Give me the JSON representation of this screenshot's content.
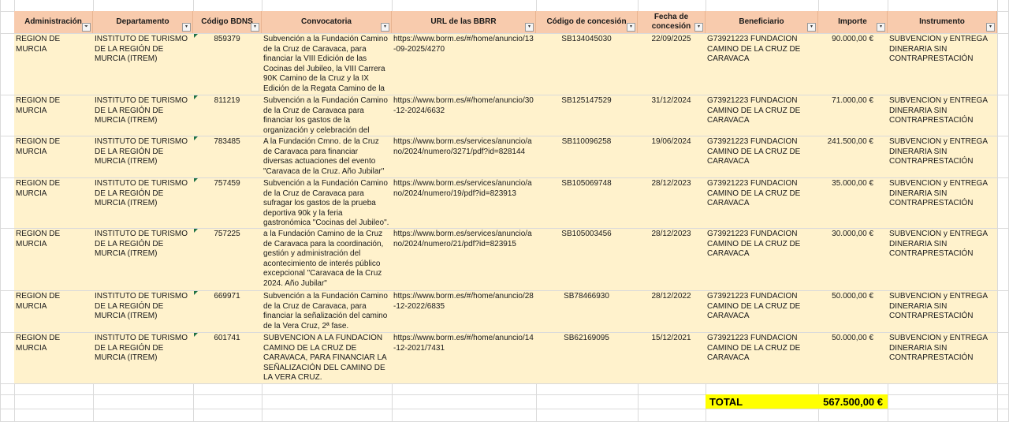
{
  "headers": [
    {
      "label": "Administración",
      "filter": "sorted"
    },
    {
      "label": "Departamento",
      "filter": "dropdown"
    },
    {
      "label": "Código BDNS",
      "filter": "dropdown"
    },
    {
      "label": "Convocatoria",
      "filter": "dropdown"
    },
    {
      "label": "URL de las BBRR",
      "filter": "dropdown"
    },
    {
      "label": "Código de concesión",
      "filter": "dropdown"
    },
    {
      "label": "Fecha de concesión",
      "filter": "dropdown"
    },
    {
      "label": "Beneficiario",
      "filter": "dropdown"
    },
    {
      "label": "Importe",
      "filter": "dropdown"
    },
    {
      "label": "Instrumento",
      "filter": "dropdown"
    }
  ],
  "rows": [
    {
      "administracion": "REGIÓN DE MURCIA",
      "departamento": "INSTITUTO DE TURISMO DE LA REGIÓN DE MURCIA (ITREM)",
      "bdns": "859379",
      "convocatoria": "Subvención a la Fundación Camino de la Cruz de Caravaca, para financiar la VIII Edición de las Cocinas del Jubileo, la VIII Carrera 90K Camino de la Cruz y la IX Edición de la Regata Camino de la Cruz Trofeo Punta Este",
      "url": "https://www.borm.es/#/home/anuncio/13-09-2025/4270",
      "codigo": "SB134045030",
      "fecha": "22/09/2025",
      "beneficiario": "G73921223 FUNDACION CAMINO DE LA CRUZ DE CARAVACA",
      "importe": "90.000,00 €",
      "instrumento": "SUBVENCIÓN y ENTREGA DINERARIA SIN CONTRAPRESTACIÓN"
    },
    {
      "administracion": "REGIÓN DE MURCIA",
      "departamento": "INSTITUTO DE TURISMO DE LA REGIÓN DE MURCIA (ITREM)",
      "bdns": "811219",
      "convocatoria": "Subvención a la Fundación Camino de la Cruz de Caravaca para financiar los gastos de la organización y celebración del festival \"Medievalada\"",
      "url": "https://www.borm.es/#/home/anuncio/30-12-2024/6632",
      "codigo": "SB125147529",
      "fecha": "31/12/2024",
      "beneficiario": "G73921223 FUNDACION CAMINO DE LA CRUZ DE CARAVACA",
      "importe": "71.000,00 €",
      "instrumento": "SUBVENCIÓN y ENTREGA DINERARIA SIN CONTRAPRESTACIÓN"
    },
    {
      "administracion": "REGIÓN DE MURCIA",
      "departamento": "INSTITUTO DE TURISMO DE LA REGIÓN DE MURCIA (ITREM)",
      "bdns": "783485",
      "convocatoria": "A la Fundación Cmno. de la Cruz de Caravaca para financiar diversas actuaciones del evento \"Caravaca de la Cruz. Año Jubilar\"",
      "url": "https://www.borm.es/services/anuncio/ano/2024/numero/3271/pdf?id=828144",
      "codigo": "SB110096258",
      "fecha": "19/06/2024",
      "beneficiario": "G73921223 FUNDACION CAMINO DE LA CRUZ DE CARAVACA",
      "importe": "241.500,00 €",
      "instrumento": "SUBVENCIÓN y ENTREGA DINERARIA SIN CONTRAPRESTACIÓN"
    },
    {
      "administracion": "REGIÓN DE MURCIA",
      "departamento": "INSTITUTO DE TURISMO DE LA REGIÓN DE MURCIA (ITREM)",
      "bdns": "757459",
      "convocatoria": "Subvención a la Fundación Camino de la Cruz de Caravaca para sufragar los gastos de la prueba deportiva 90k y la feria gastronómica \"Cocinas del Jubileo\".",
      "url": "https://www.borm.es/services/anuncio/ano/2024/numero/19/pdf?id=823913",
      "codigo": "SB105069748",
      "fecha": "28/12/2023",
      "beneficiario": "G73921223 FUNDACION CAMINO DE LA CRUZ DE CARAVACA",
      "importe": "35.000,00 €",
      "instrumento": "SUBVENCIÓN y ENTREGA DINERARIA SIN CONTRAPRESTACIÓN"
    },
    {
      "administracion": "REGIÓN DE MURCIA",
      "departamento": "INSTITUTO DE TURISMO DE LA REGIÓN DE MURCIA (ITREM)",
      "bdns": "757225",
      "convocatoria": "a la Fundación Camino de la Cruz de Caravaca para la coordinación, gestión y administración del acontecimiento de interés público excepcional \"Caravaca de la Cruz 2024. Año Jubilar\"",
      "url": "https://www.borm.es/services/anuncio/ano/2024/numero/21/pdf?id=823915",
      "codigo": "SB105003456",
      "fecha": "28/12/2023",
      "beneficiario": "G73921223 FUNDACION CAMINO DE LA CRUZ DE CARAVACA",
      "importe": "30.000,00 €",
      "instrumento": "SUBVENCIÓN y ENTREGA DINERARIA SIN CONTRAPRESTACIÓN"
    },
    {
      "administracion": "REGIÓN DE MURCIA",
      "departamento": "INSTITUTO DE TURISMO DE LA REGIÓN DE MURCIA (ITREM)",
      "bdns": "669971",
      "convocatoria": "Subvención a la Fundación Camino de la Cruz de Caravaca, para financiar la señalización del camino de la Vera Cruz, 2ª fase.",
      "url": "https://www.borm.es/#/home/anuncio/28-12-2022/6835",
      "codigo": "SB78466930",
      "fecha": "28/12/2022",
      "beneficiario": "G73921223 FUNDACION CAMINO DE LA CRUZ DE CARAVACA",
      "importe": "50.000,00 €",
      "instrumento": "SUBVENCIÓN y ENTREGA DINERARIA SIN CONTRAPRESTACIÓN"
    },
    {
      "administracion": "REGIÓN DE MURCIA",
      "departamento": "INSTITUTO DE TURISMO DE LA REGIÓN DE MURCIA (ITREM)",
      "bdns": "601741",
      "convocatoria": "SUBVENCIÓN A LA FUNDACIÓN CAMINO DE LA CRUZ DE CARAVACA, PARA FINANCIAR LA SEÑALIZACIÓN DEL CAMINO DE LA VERA CRUZ.",
      "url": "https://www.borm.es/#/home/anuncio/14-12-2021/7431",
      "codigo": "SB62169095",
      "fecha": "15/12/2021",
      "beneficiario": "G73921223 FUNDACION CAMINO DE LA CRUZ DE CARAVACA",
      "importe": "50.000,00 €",
      "instrumento": "SUBVENCIÓN y ENTREGA DINERARIA SIN CONTRAPRESTACIÓN"
    }
  ],
  "total": {
    "label": "TOTAL",
    "value": "567.500,00 €"
  },
  "colors": {
    "header_fill": "#f8cbad",
    "row_fill": "#fff2cc",
    "total_fill": "#ffff00",
    "grid": "#dadada",
    "indicator": "#1e7145"
  }
}
